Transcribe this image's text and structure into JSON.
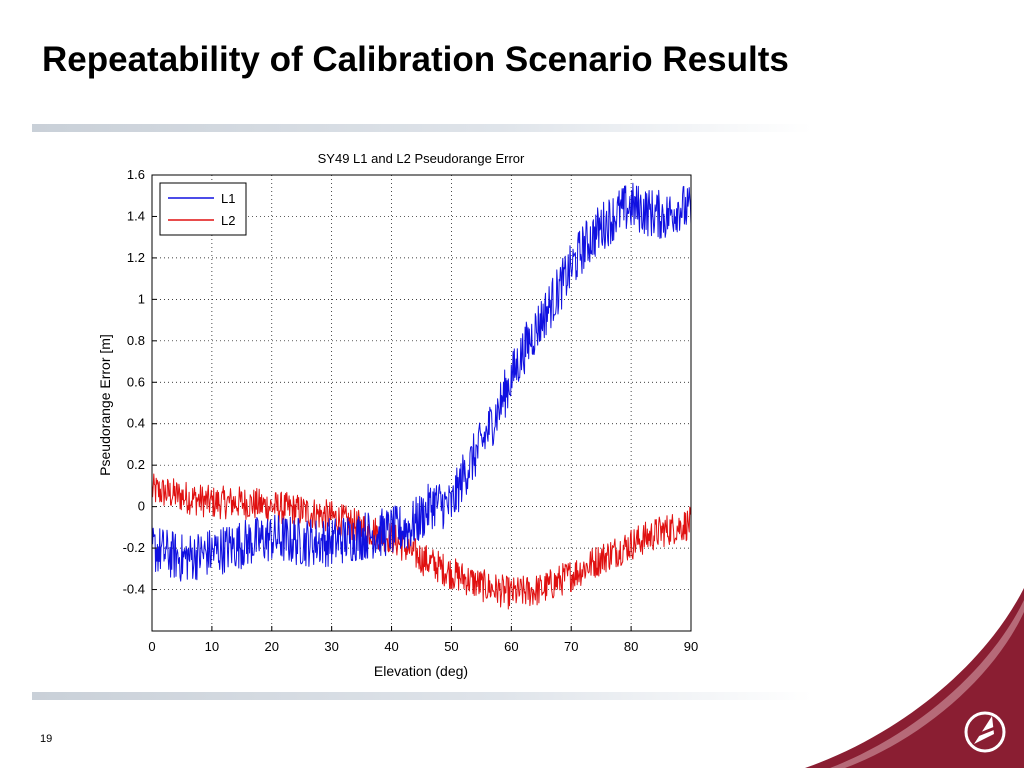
{
  "slide": {
    "title": "Repeatability of Calibration Scenario Results",
    "page_number": "19"
  },
  "colors": {
    "l1": "#1010e0",
    "l2": "#e01010",
    "accent_maroon": "#8a1e32",
    "rule": "#c9d0d8"
  },
  "chart_data": {
    "type": "line",
    "title": "SY49 L1 and L2 Pseudorange Error",
    "xlabel": "Elevation (deg)",
    "ylabel": "Pseudorange Error [m]",
    "xlim": [
      0,
      90
    ],
    "ylim": [
      -0.6,
      1.6
    ],
    "x_ticks": [
      0,
      10,
      20,
      30,
      40,
      50,
      60,
      70,
      80,
      90
    ],
    "y_ticks": [
      -0.4,
      -0.2,
      0,
      0.2,
      0.4,
      0.6,
      0.8,
      1,
      1.2,
      1.4,
      1.6
    ],
    "grid": true,
    "legend_position": "top-left",
    "series": [
      {
        "name": "L1",
        "color": "#1010e0",
        "noise_amplitude": 0.12,
        "x": [
          0,
          5,
          10,
          15,
          20,
          25,
          30,
          35,
          40,
          43,
          45,
          47,
          50,
          52,
          55,
          58,
          60,
          62,
          65,
          68,
          70,
          72,
          75,
          78,
          80,
          83,
          86,
          88,
          90
        ],
        "y": [
          -0.2,
          -0.25,
          -0.22,
          -0.18,
          -0.15,
          -0.17,
          -0.17,
          -0.14,
          -0.12,
          -0.1,
          -0.05,
          0.02,
          0.0,
          0.15,
          0.3,
          0.48,
          0.62,
          0.75,
          0.9,
          1.05,
          1.15,
          1.25,
          1.35,
          1.42,
          1.45,
          1.42,
          1.4,
          1.45,
          1.42
        ]
      },
      {
        "name": "L2",
        "color": "#e01010",
        "noise_amplitude": 0.08,
        "x": [
          0,
          5,
          10,
          15,
          20,
          25,
          30,
          35,
          40,
          45,
          50,
          55,
          60,
          65,
          70,
          75,
          80,
          85,
          90
        ],
        "y": [
          0.08,
          0.05,
          0.02,
          0.02,
          0.0,
          -0.02,
          -0.05,
          -0.1,
          -0.15,
          -0.25,
          -0.32,
          -0.38,
          -0.42,
          -0.4,
          -0.33,
          -0.25,
          -0.18,
          -0.12,
          -0.08
        ]
      }
    ]
  }
}
